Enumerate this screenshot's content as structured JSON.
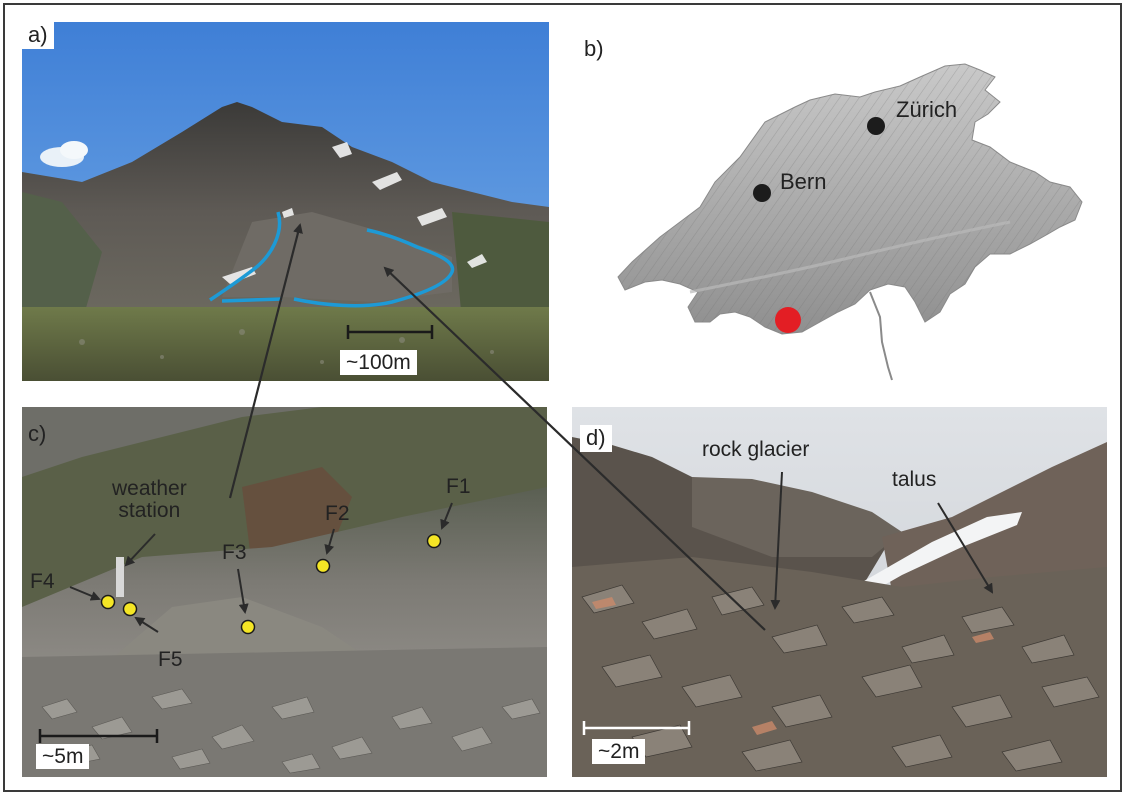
{
  "panels": {
    "a": {
      "label": "a)",
      "scale": "~100m"
    },
    "b": {
      "label": "b)",
      "cities": [
        "Zürich",
        "Bern"
      ]
    },
    "c": {
      "label": "c)",
      "scale": "~5m",
      "weather_station": "weather\nstation",
      "points": [
        "F1",
        "F2",
        "F3",
        "F4",
        "F5"
      ]
    },
    "d": {
      "label": "d)",
      "scale": "~2m",
      "rock_glacier": "rock glacier",
      "talus": "talus"
    }
  },
  "colors": {
    "outline": "#1d9ad6",
    "site_marker": "#e31e24",
    "point_marker": "#f5e625",
    "city_marker": "#1c1c1c",
    "arrow": "#2b2b2b"
  }
}
